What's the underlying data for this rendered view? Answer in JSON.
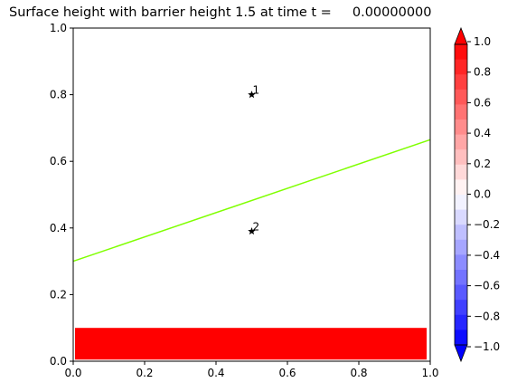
{
  "chart_data": {
    "type": "heatmap",
    "title": "Surface height with barrier height 1.5 at time t =     0.00000000",
    "xlim": [
      0,
      1
    ],
    "ylim": [
      0,
      1
    ],
    "xticks": [
      "0.0",
      "0.2",
      "0.4",
      "0.6",
      "0.8",
      "1.0"
    ],
    "yticks": [
      "0.0",
      "0.2",
      "0.4",
      "0.6",
      "0.8",
      "1.0"
    ],
    "grid": false,
    "surface": {
      "description_color": "#ff0000",
      "region": {
        "x": [
          0.005,
          0.99
        ],
        "y": [
          0.005,
          0.1
        ]
      },
      "value": 1.0
    },
    "line": {
      "color": "#7fff00",
      "x": [
        0.0,
        1.0
      ],
      "y": [
        0.3,
        0.665
      ]
    },
    "markers": [
      {
        "label": "1",
        "x": 0.5,
        "y": 0.8
      },
      {
        "label": "2",
        "x": 0.5,
        "y": 0.39
      }
    ],
    "colorbar": {
      "range": [
        -1.0,
        1.0
      ],
      "extend": "both",
      "ticks": [
        "1.0",
        "0.8",
        "0.6",
        "0.4",
        "0.2",
        "0.0",
        "−0.2",
        "−0.4",
        "−0.6",
        "−0.8",
        "−1.0"
      ],
      "levels": 20,
      "colormap": "bwr"
    }
  }
}
